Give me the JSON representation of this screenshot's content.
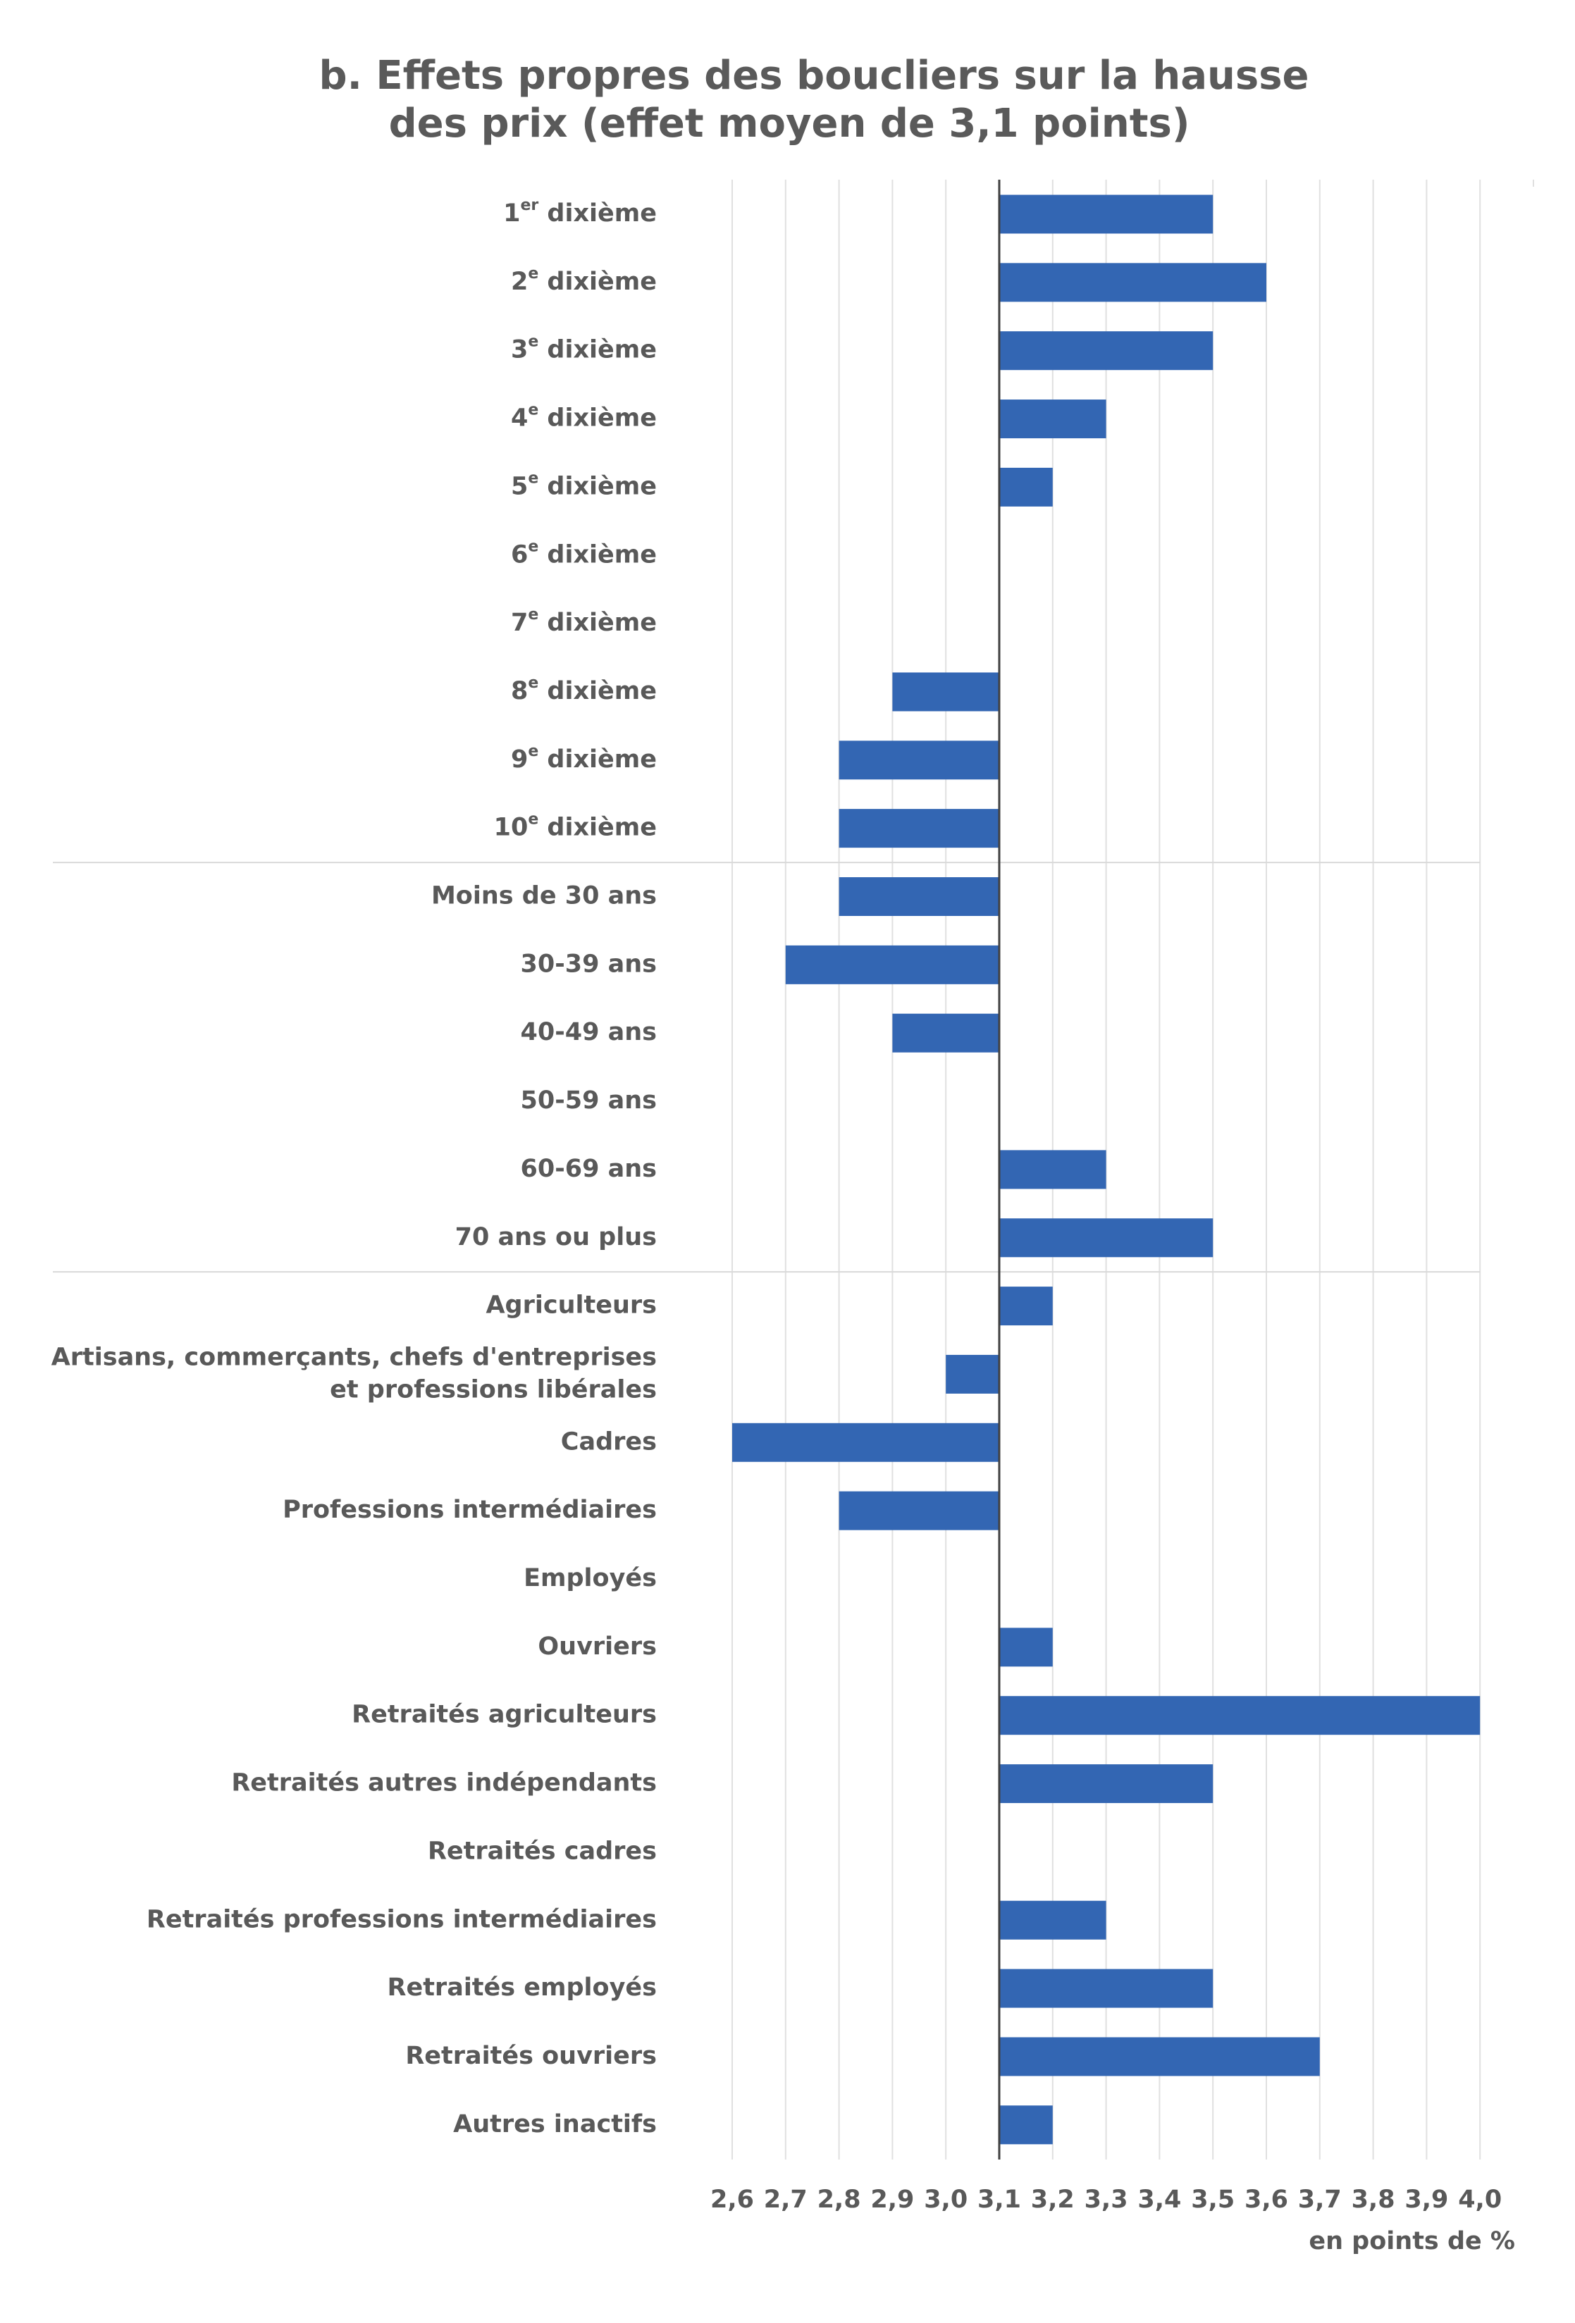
{
  "chart_data": {
    "type": "bar",
    "orientation": "horizontal",
    "title": [
      "b. Effets propres des boucliers sur la hausse",
      "des prix (effet moyen de 3,1 points)"
    ],
    "x_label": "en points de %",
    "categories": [
      "1er dixième",
      "2e dixième",
      "3e dixième",
      "4e dixième",
      "5e dixième",
      "6e dixième",
      "7e dixième",
      "8e dixième",
      "9e dixième",
      "10e dixième",
      "Moins de 30 ans",
      "30-39 ans",
      "40-49 ans",
      "50-59 ans",
      "60-69 ans",
      "70 ans ou plus",
      "Agriculteurs",
      "Artisans, commerçants, chefs d'entreprises\net professions libérales",
      "Cadres",
      "Professions intermédiaires",
      "Employés",
      "Ouvriers",
      "Retraités agriculteurs",
      "Retraités autres indépendants",
      "Retraités cadres",
      "Retraités professions intermédiaires",
      "Retraités employés",
      "Retraités ouvriers",
      "Autres inactifs"
    ],
    "values": [
      3.5,
      3.6,
      3.5,
      3.3,
      3.2,
      3.1,
      3.1,
      2.9,
      2.8,
      2.8,
      2.8,
      2.7,
      2.9,
      3.1,
      3.3,
      3.5,
      3.2,
      3.0,
      2.6,
      2.8,
      3.1,
      3.2,
      4.0,
      3.5,
      3.1,
      3.3,
      3.5,
      3.7,
      3.2
    ],
    "baseline": 3.1,
    "color": "#3366b3",
    "xlim": [
      2.6,
      4.1
    ],
    "xticks": [
      {
        "value": 2.6,
        "label": "2,6"
      },
      {
        "value": 2.7,
        "label": "2,7"
      },
      {
        "value": 2.8,
        "label": "2,8"
      },
      {
        "value": 2.9,
        "label": "2,9"
      },
      {
        "value": 3.0,
        "label": "3,0"
      },
      {
        "value": 3.1,
        "label": "3,1"
      },
      {
        "value": 3.2,
        "label": "3,2"
      },
      {
        "value": 3.3,
        "label": "3,3"
      },
      {
        "value": 3.4,
        "label": "3,4"
      },
      {
        "value": 3.5,
        "label": "3,5"
      },
      {
        "value": 3.6,
        "label": "3,6"
      },
      {
        "value": 3.7,
        "label": "3,7"
      },
      {
        "value": 3.8,
        "label": "3,8"
      },
      {
        "value": 3.9,
        "label": "3,9"
      },
      {
        "value": 4.0,
        "label": "4,0"
      }
    ],
    "grid": true
  }
}
